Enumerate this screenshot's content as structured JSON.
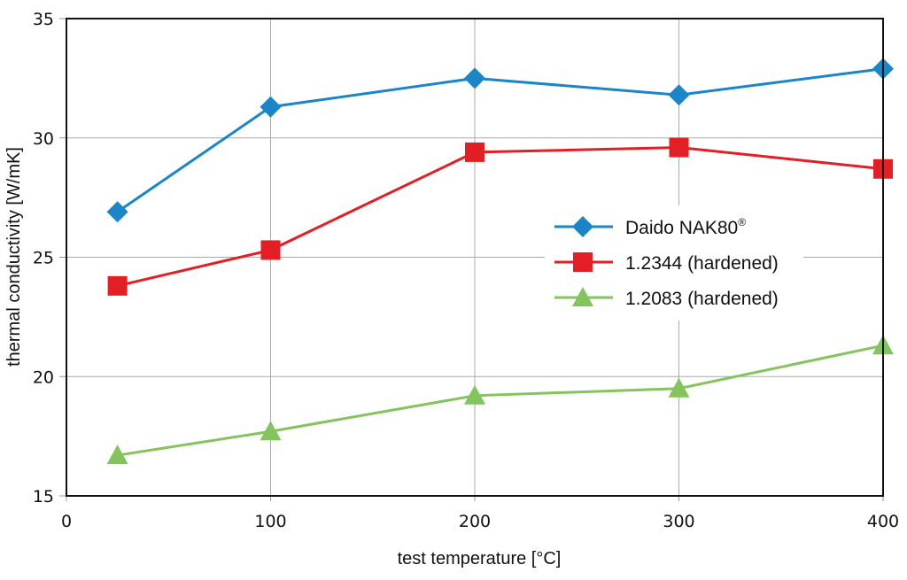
{
  "chart_data": {
    "type": "line",
    "xlabel": "test temperature [°C]",
    "ylabel": "thermal conductivity [W/mK]",
    "xlim": [
      0,
      400
    ],
    "ylim": [
      15,
      35
    ],
    "xticks": [
      0,
      100,
      200,
      300,
      400
    ],
    "yticks": [
      15,
      20,
      25,
      30,
      35
    ],
    "grid": true,
    "legend_position": "center-right",
    "x": [
      25,
      100,
      200,
      300,
      400
    ],
    "series": [
      {
        "name": "Daido NAK80",
        "superscript": "®",
        "marker": "diamond",
        "color": "#1a86c8",
        "values": [
          26.9,
          31.3,
          32.5,
          31.8,
          32.9
        ]
      },
      {
        "name": "1.2344 (hardened)",
        "superscript": "",
        "marker": "square",
        "color": "#e31e24",
        "values": [
          23.8,
          25.3,
          29.4,
          29.6,
          28.7
        ]
      },
      {
        "name": "1.2083 (hardened)",
        "superscript": "",
        "marker": "triangle",
        "color": "#84c45c",
        "values": [
          16.7,
          17.7,
          19.2,
          19.5,
          21.3
        ]
      }
    ]
  }
}
